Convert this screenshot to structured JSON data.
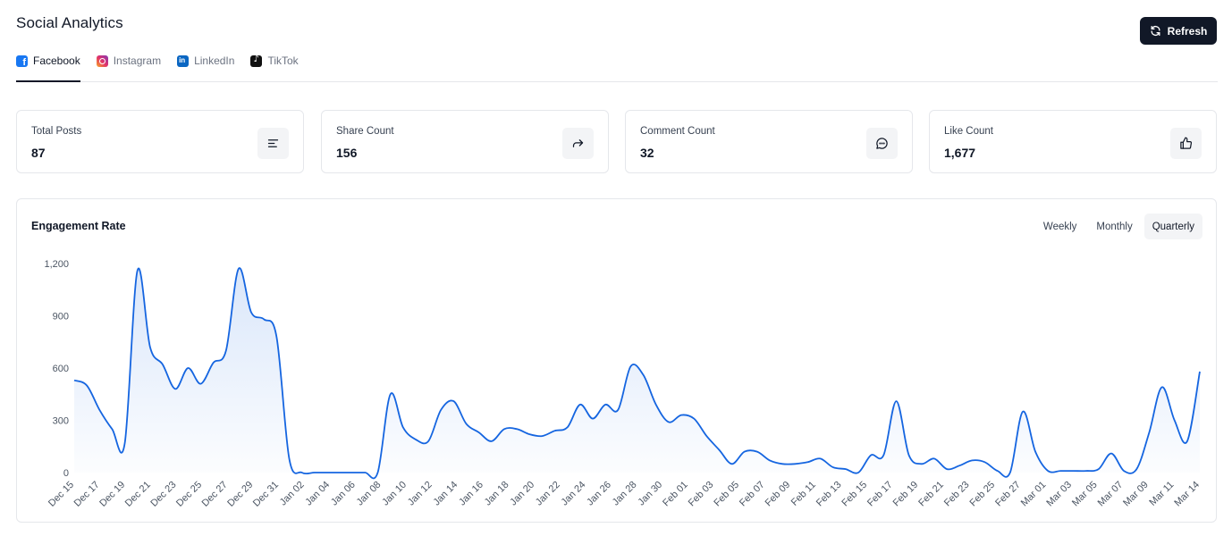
{
  "page": {
    "title": "Social Analytics",
    "refresh_label": "Refresh"
  },
  "tabs": [
    {
      "label": "Facebook",
      "icon": "facebook-icon",
      "active": true
    },
    {
      "label": "Instagram",
      "icon": "instagram-icon",
      "active": false
    },
    {
      "label": "LinkedIn",
      "icon": "linkedin-icon",
      "active": false
    },
    {
      "label": "TikTok",
      "icon": "tiktok-icon",
      "active": false
    }
  ],
  "stats": [
    {
      "label": "Total Posts",
      "value": "87",
      "icon": "align-lines-icon"
    },
    {
      "label": "Share Count",
      "value": "156",
      "icon": "share-arrow-icon"
    },
    {
      "label": "Comment Count",
      "value": "32",
      "icon": "comment-icon"
    },
    {
      "label": "Like Count",
      "value": "1,677",
      "icon": "thumbs-up-icon"
    }
  ],
  "engagement": {
    "title": "Engagement Rate",
    "periods": [
      {
        "label": "Weekly",
        "active": false
      },
      {
        "label": "Monthly",
        "active": false
      },
      {
        "label": "Quarterly",
        "active": true
      }
    ]
  },
  "colors": {
    "accent": "#1565e0",
    "dark": "#111827"
  },
  "chart_data": {
    "type": "area",
    "title": "Engagement Rate",
    "xlabel": "",
    "ylabel": "",
    "ylim": [
      0,
      1200
    ],
    "yticks": [
      0,
      300,
      600,
      900,
      1200
    ],
    "ytick_labels": [
      "0",
      "300",
      "600",
      "900",
      "1,200"
    ],
    "grid": false,
    "x_tick_labels": [
      "Dec 15",
      "Dec 17",
      "Dec 19",
      "Dec 21",
      "Dec 23",
      "Dec 25",
      "Dec 27",
      "Dec 29",
      "Dec 31",
      "Jan 02",
      "Jan 04",
      "Jan 06",
      "Jan 08",
      "Jan 10",
      "Jan 12",
      "Jan 14",
      "Jan 16",
      "Jan 18",
      "Jan 20",
      "Jan 22",
      "Jan 24",
      "Jan 26",
      "Jan 28",
      "Jan 30",
      "Feb 01",
      "Feb 03",
      "Feb 05",
      "Feb 07",
      "Feb 09",
      "Feb 11",
      "Feb 13",
      "Feb 15",
      "Feb 17",
      "Feb 19",
      "Feb 21",
      "Feb 23",
      "Feb 25",
      "Feb 27",
      "Mar 01",
      "Mar 03",
      "Mar 05",
      "Mar 07",
      "Mar 09",
      "Mar 11",
      "Mar 14"
    ],
    "series": [
      {
        "values": [
          530,
          500,
          360,
          250,
          170,
          1160,
          720,
          620,
          480,
          600,
          510,
          630,
          700,
          1170,
          920,
          880,
          780,
          80,
          0,
          0,
          0,
          0,
          0,
          0,
          0,
          450,
          260,
          190,
          180,
          360,
          410,
          280,
          230,
          180,
          250,
          250,
          220,
          210,
          240,
          260,
          390,
          310,
          390,
          360,
          610,
          560,
          390,
          290,
          330,
          310,
          210,
          130,
          50,
          120,
          120,
          70,
          50,
          50,
          60,
          80,
          30,
          20,
          0,
          100,
          100,
          410,
          100,
          50,
          80,
          20,
          40,
          70,
          60,
          10,
          0,
          350,
          120,
          10,
          10,
          10,
          10,
          20,
          110,
          10,
          20,
          230,
          490,
          300,
          180,
          580
        ]
      }
    ]
  }
}
